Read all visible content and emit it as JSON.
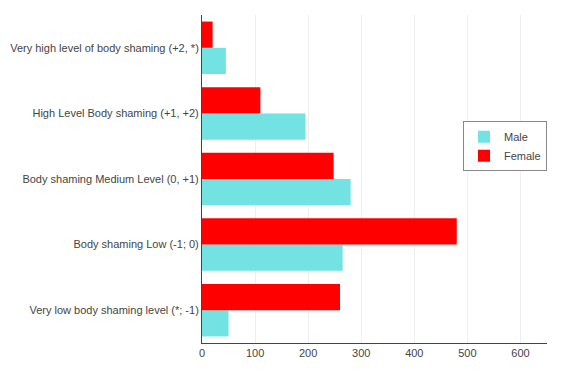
{
  "chart_data": {
    "type": "bar",
    "orientation": "horizontal",
    "categories": [
      "Very low body shaming level (*; -1)",
      "Body shaming Low (-1; 0)",
      "Body shaming Medium Level (0, +1)",
      "High Level Body shaming (+1, +2)",
      "Very high level of body shaming (+2, *)"
    ],
    "series": [
      {
        "name": "Male",
        "color": "#72E2E2",
        "values": [
          50,
          265,
          280,
          195,
          45
        ]
      },
      {
        "name": "Female",
        "color": "#FF0000",
        "values": [
          260,
          480,
          248,
          110,
          20
        ]
      }
    ],
    "xlim": [
      0,
      650
    ],
    "xticks": [
      0,
      100,
      200,
      300,
      400,
      500,
      600
    ],
    "grid": true,
    "legend": "right"
  }
}
